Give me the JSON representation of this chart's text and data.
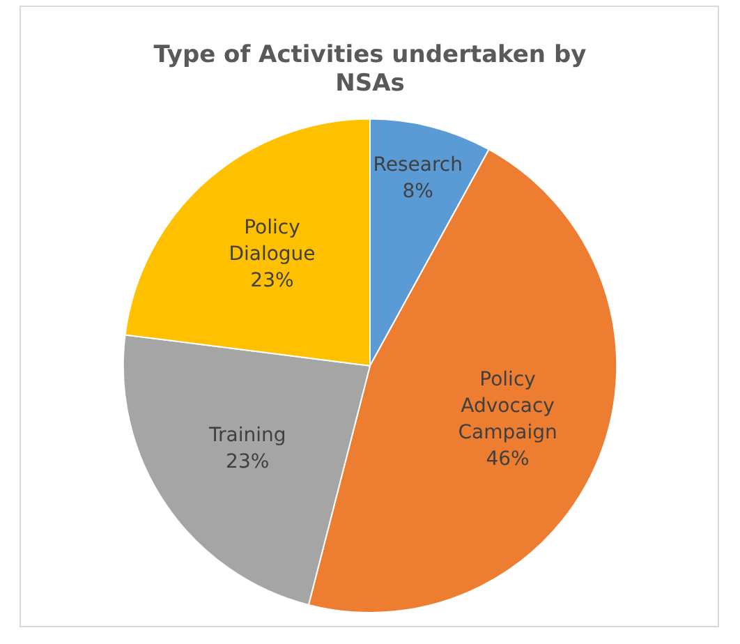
{
  "chart_data": {
    "type": "pie",
    "title": "Type of Activities undertaken by NSAs",
    "categories": [
      "Research",
      "Policy Advocacy Campaign",
      "Training",
      "Policy Dialogue"
    ],
    "values": [
      8,
      46,
      23,
      23
    ],
    "colors": [
      "#5b9bd5",
      "#ed7d31",
      "#a5a5a5",
      "#ffc000"
    ],
    "value_labels": [
      "8%",
      "46%",
      "23%",
      "23%"
    ],
    "legend": false
  }
}
